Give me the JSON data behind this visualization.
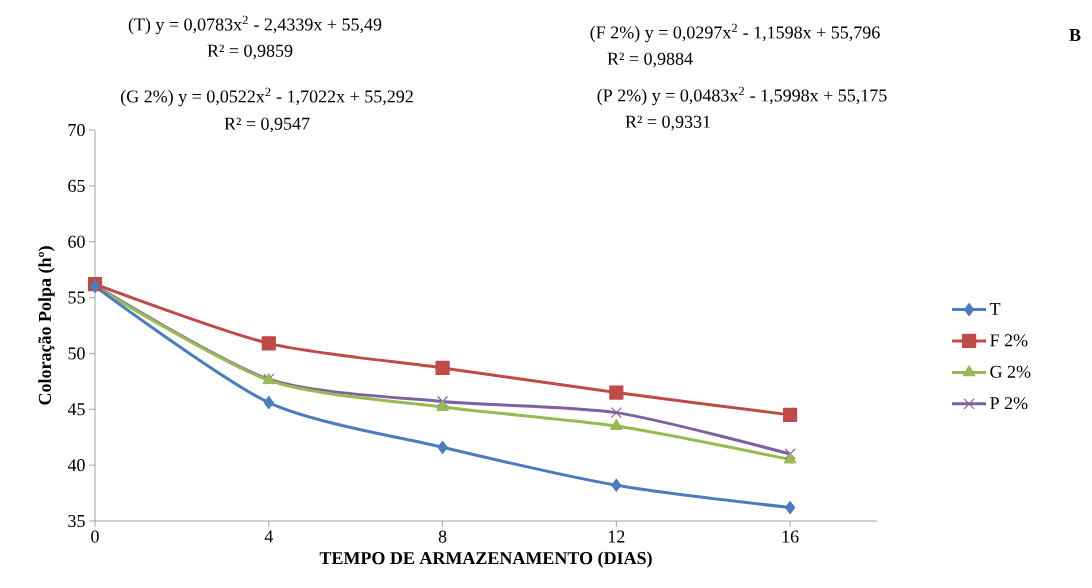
{
  "chart_data": {
    "type": "line",
    "xlabel": "TEMPO DE ARMAZENAMENTO  (DIAS)",
    "ylabel": "Coloração Polpa (hº)",
    "x": [
      0,
      4,
      8,
      12,
      16
    ],
    "xlim": [
      0,
      18
    ],
    "xticks": [
      0,
      4,
      8,
      12,
      16
    ],
    "ylim": [
      35,
      70
    ],
    "yticks": [
      35,
      40,
      45,
      50,
      55,
      60,
      65,
      70
    ],
    "series": [
      {
        "name": "T",
        "color": "#4a7ebb",
        "marker": "diamond",
        "values": [
          56.0,
          45.6,
          41.6,
          38.2,
          36.2
        ]
      },
      {
        "name": "F 2%",
        "color": "#be4b48",
        "marker": "square",
        "values": [
          56.2,
          50.9,
          48.7,
          46.5,
          44.5
        ]
      },
      {
        "name": "G 2%",
        "color": "#98b954",
        "marker": "triangle",
        "values": [
          56.0,
          47.6,
          45.2,
          43.5,
          40.5
        ]
      },
      {
        "name": "P 2%",
        "color": "#7d60a0",
        "marker": "cross",
        "values": [
          56.1,
          47.7,
          45.7,
          44.7,
          41.0
        ]
      }
    ],
    "legend": "right",
    "grid": false,
    "annotations": [
      "(T) y = 0,0783x$^{2}$ - 2,4339x + 55,49",
      "R² = 0,9859",
      "(F 2%) y = 0,0297x$^{2}$ - 1,1598x + 55,796",
      "R² = 0,9884",
      "(G 2%) y = 0,0522x$^{2}$ - 1,7022x + 55,292",
      "R² = 0,9547",
      "(P 2%) y = 0,0483x$^{2}$ - 1,5998x + 55,175",
      "R² = 0,9331",
      "**B**"
    ]
  }
}
